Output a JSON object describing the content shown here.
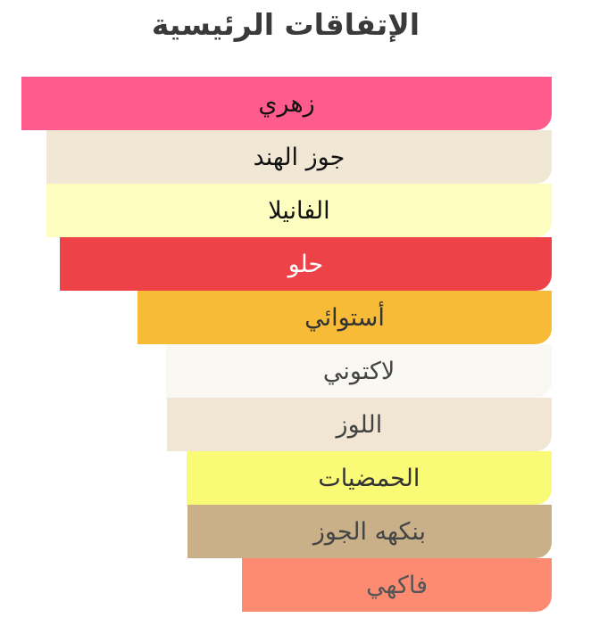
{
  "chart_data": {
    "type": "bar",
    "orientation": "horizontal",
    "title": "الإتفاقات الرئيسية",
    "unit": "percent of strongest accord",
    "xlim": [
      0,
      100
    ],
    "grid": false,
    "categories": [
      "زهري",
      "جوز الهند",
      "الفانيلا",
      "حلو",
      "أستوائي",
      "لاكتوني",
      "اللوز",
      "الحمضيات",
      "بنكهه الجوز",
      "فاكهي"
    ],
    "values": [
      100,
      95.3,
      95.3,
      92.8,
      78.1,
      72.7,
      72.6,
      68.9,
      68.7,
      58.4
    ],
    "colors": [
      "#FF5C8D",
      "#F1E7D5",
      "#FDFDC0",
      "#EE4249",
      "#F7BB38",
      "#FAF8F2",
      "#F1E6D4",
      "#F9FB77",
      "#C9B089",
      "#FC8B72"
    ],
    "text_colors": [
      "#111111",
      "#111111",
      "#111111",
      "#FFFFFF",
      "#333333",
      "#444444",
      "#444444",
      "#333333",
      "#444444",
      "#555555"
    ]
  }
}
